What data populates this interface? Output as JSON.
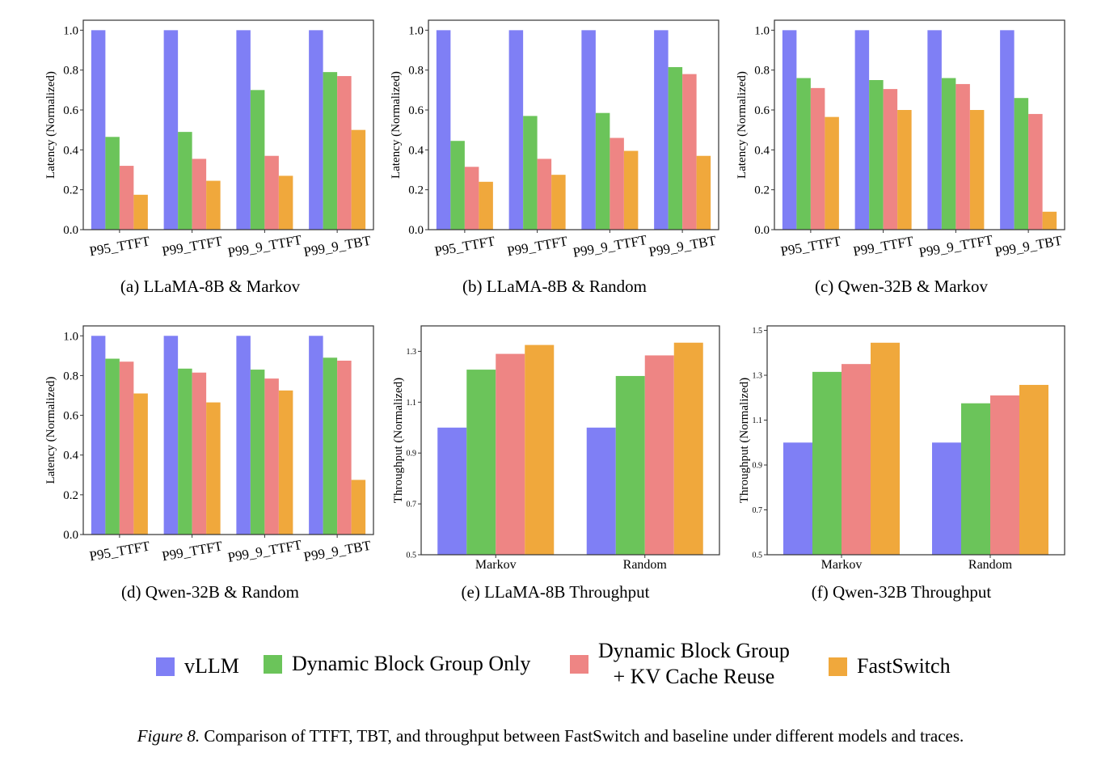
{
  "legend": [
    {
      "name": "vLLM",
      "color": "#7f7ff5"
    },
    {
      "name": "Dynamic Block Group Only",
      "color": "#6bc45a"
    },
    {
      "name": "Dynamic Block Group\n+ KV Cache Reuse",
      "color": "#ee8584"
    },
    {
      "name": "FastSwitch",
      "color": "#f0a83c"
    }
  ],
  "caption": {
    "figure_label": "Figure 8.",
    "text": " Comparison of TTFT, TBT, and throughput between FastSwitch and baseline under different models and traces."
  },
  "chart_data": [
    {
      "type": "bar",
      "subcaption": "(a) LLaMA-8B & Markov",
      "ylabel": "Latency (Normalized)",
      "xlabel": "",
      "ylim": [
        0,
        1.05
      ],
      "yticks": [
        "0.0",
        "0.2",
        "0.4",
        "0.6",
        "0.8",
        "1.0"
      ],
      "categories": [
        "P95_TTFT",
        "P99_TTFT",
        "P99_9_TTFT",
        "P99_9_TBT"
      ],
      "series": [
        {
          "name": "vLLM",
          "values": [
            1.0,
            1.0,
            1.0,
            1.0
          ]
        },
        {
          "name": "Dynamic Block Group Only",
          "values": [
            0.465,
            0.49,
            0.7,
            0.79
          ]
        },
        {
          "name": "Dynamic Block Group + KV Cache Reuse",
          "values": [
            0.32,
            0.355,
            0.37,
            0.77
          ]
        },
        {
          "name": "FastSwitch",
          "values": [
            0.175,
            0.245,
            0.27,
            0.5
          ]
        }
      ]
    },
    {
      "type": "bar",
      "subcaption": "(b) LLaMA-8B & Random",
      "ylabel": "Latency (Normalized)",
      "xlabel": "",
      "ylim": [
        0,
        1.05
      ],
      "yticks": [
        "0.0",
        "0.2",
        "0.4",
        "0.6",
        "0.8",
        "1.0"
      ],
      "categories": [
        "P95_TTFT",
        "P99_TTFT",
        "P99_9_TTFT",
        "P99_9_TBT"
      ],
      "series": [
        {
          "name": "vLLM",
          "values": [
            1.0,
            1.0,
            1.0,
            1.0
          ]
        },
        {
          "name": "Dynamic Block Group Only",
          "values": [
            0.445,
            0.57,
            0.585,
            0.815
          ]
        },
        {
          "name": "Dynamic Block Group + KV Cache Reuse",
          "values": [
            0.315,
            0.355,
            0.46,
            0.78
          ]
        },
        {
          "name": "FastSwitch",
          "values": [
            0.24,
            0.275,
            0.395,
            0.37
          ]
        }
      ]
    },
    {
      "type": "bar",
      "subcaption": "(c) Qwen-32B & Markov",
      "ylabel": "Latency (Normalized)",
      "xlabel": "",
      "ylim": [
        0,
        1.05
      ],
      "yticks": [
        "0.0",
        "0.2",
        "0.4",
        "0.6",
        "0.8",
        "1.0"
      ],
      "categories": [
        "P95_TTFT",
        "P99_TTFT",
        "P99_9_TTFT",
        "P99_9_TBT"
      ],
      "series": [
        {
          "name": "vLLM",
          "values": [
            1.0,
            1.0,
            1.0,
            1.0
          ]
        },
        {
          "name": "Dynamic Block Group Only",
          "values": [
            0.76,
            0.75,
            0.76,
            0.66
          ]
        },
        {
          "name": "Dynamic Block Group + KV Cache Reuse",
          "values": [
            0.71,
            0.705,
            0.73,
            0.58
          ]
        },
        {
          "name": "FastSwitch",
          "values": [
            0.565,
            0.6,
            0.6,
            0.09
          ]
        }
      ]
    },
    {
      "type": "bar",
      "subcaption": "(d) Qwen-32B & Random",
      "ylabel": "Latency (Normalized)",
      "xlabel": "",
      "ylim": [
        0,
        1.05
      ],
      "yticks": [
        "0.0",
        "0.2",
        "0.4",
        "0.6",
        "0.8",
        "1.0"
      ],
      "categories": [
        "P95_TTFT",
        "P99_TTFT",
        "P99_9_TTFT",
        "P99_9_TBT"
      ],
      "series": [
        {
          "name": "vLLM",
          "values": [
            1.0,
            1.0,
            1.0,
            1.0
          ]
        },
        {
          "name": "Dynamic Block Group Only",
          "values": [
            0.885,
            0.835,
            0.83,
            0.89
          ]
        },
        {
          "name": "Dynamic Block Group + KV Cache Reuse",
          "values": [
            0.87,
            0.815,
            0.785,
            0.875
          ]
        },
        {
          "name": "FastSwitch",
          "values": [
            0.71,
            0.665,
            0.725,
            0.275
          ]
        }
      ]
    },
    {
      "type": "bar",
      "subcaption": "(e) LLaMA-8B Throughput",
      "ylabel": "Throughput (Normalized)",
      "xlabel": "",
      "ylim": [
        0.5,
        1.4
      ],
      "yticks": [
        "0.5",
        "0.7",
        "0.9",
        "1.1",
        "1.3"
      ],
      "categories": [
        "Markov",
        "Random"
      ],
      "series": [
        {
          "name": "vLLM",
          "values": [
            1.0,
            1.0
          ]
        },
        {
          "name": "Dynamic Block Group Only",
          "values": [
            1.228,
            1.203
          ]
        },
        {
          "name": "Dynamic Block Group + KV Cache Reuse",
          "values": [
            1.29,
            1.284
          ]
        },
        {
          "name": "FastSwitch",
          "values": [
            1.325,
            1.334
          ]
        }
      ]
    },
    {
      "type": "bar",
      "subcaption": "(f) Qwen-32B Throughput",
      "ylabel": "Throughput (Normalized)",
      "xlabel": "",
      "ylim": [
        0.5,
        1.52
      ],
      "yticks": [
        "0.5",
        "0.7",
        "0.9",
        "1.1",
        "1.3",
        "1.5"
      ],
      "categories": [
        "Markov",
        "Random"
      ],
      "series": [
        {
          "name": "vLLM",
          "values": [
            1.0,
            1.0
          ]
        },
        {
          "name": "Dynamic Block Group Only",
          "values": [
            1.315,
            1.175
          ]
        },
        {
          "name": "Dynamic Block Group + KV Cache Reuse",
          "values": [
            1.35,
            1.21
          ]
        },
        {
          "name": "FastSwitch",
          "values": [
            1.445,
            1.257
          ]
        }
      ]
    }
  ]
}
